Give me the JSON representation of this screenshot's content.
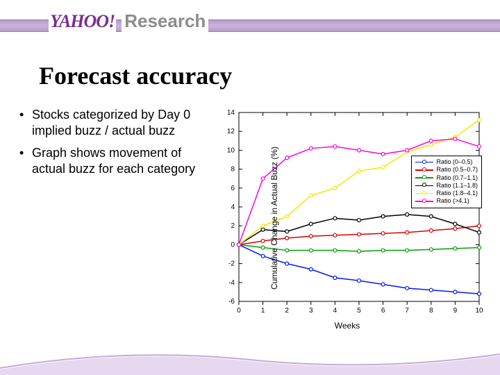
{
  "header": {
    "logo_text": "YAHOO!",
    "research_label": "Research"
  },
  "slide": {
    "title": "Forecast accuracy",
    "bullets": [
      "Stocks categorized by Day 0 implied buzz / actual buzz",
      "Graph shows movement of actual buzz for each category"
    ]
  },
  "chart": {
    "type": "line",
    "xlabel": "Weeks",
    "ylabel": "Cumulative Change in Actual Buzz (%)",
    "xlim": [
      0,
      10
    ],
    "ylim": [
      -6,
      14
    ],
    "xtick_step": 1,
    "ytick_step": 2,
    "label_fontsize": 12,
    "tick_fontsize": 10,
    "background_color": "#ffffff",
    "axis_color": "#000000",
    "grid": false,
    "line_width": 1.5,
    "marker": "circle",
    "marker_size": 5,
    "marker_fill": "#ffffff",
    "series": [
      {
        "name": "Ratio (0–0.5)",
        "color": "#0018f0",
        "x": [
          0,
          1,
          2,
          3,
          4,
          5,
          6,
          7,
          8,
          9,
          10
        ],
        "y": [
          0,
          -1.2,
          -2.0,
          -2.6,
          -3.5,
          -3.8,
          -4.2,
          -4.6,
          -4.8,
          -5.0,
          -5.2
        ]
      },
      {
        "name": "Ratio (0.5–0.7)",
        "color": "#d60000",
        "x": [
          0,
          1,
          2,
          3,
          4,
          5,
          6,
          7,
          8,
          9,
          10
        ],
        "y": [
          0,
          0.4,
          0.7,
          0.9,
          1.0,
          1.1,
          1.2,
          1.3,
          1.5,
          1.7,
          2.0
        ]
      },
      {
        "name": "Ratio (0.7–1.1)",
        "color": "#00a000",
        "x": [
          0,
          1,
          2,
          3,
          4,
          5,
          6,
          7,
          8,
          9,
          10
        ],
        "y": [
          0,
          -0.3,
          -0.6,
          -0.6,
          -0.6,
          -0.7,
          -0.6,
          -0.6,
          -0.5,
          -0.4,
          -0.3
        ]
      },
      {
        "name": "Ratio (1.1–1.8)",
        "color": "#000000",
        "x": [
          0,
          1,
          2,
          3,
          4,
          5,
          6,
          7,
          8,
          9,
          10
        ],
        "y": [
          0,
          1.6,
          1.4,
          2.2,
          2.8,
          2.6,
          3.0,
          3.2,
          3.0,
          2.2,
          1.3
        ]
      },
      {
        "name": "Ratio (1.8–4.1)",
        "color": "#f5e600",
        "x": [
          0,
          1,
          2,
          3,
          4,
          5,
          6,
          7,
          8,
          9,
          10
        ],
        "y": [
          0,
          2.0,
          3.0,
          5.2,
          6.0,
          7.8,
          8.2,
          9.8,
          10.6,
          11.4,
          13.2
        ]
      },
      {
        "name": "Ratio (>4.1)",
        "color": "#ff00de",
        "x": [
          0,
          1,
          2,
          3,
          4,
          5,
          6,
          7,
          8,
          9,
          10
        ],
        "y": [
          0,
          7.0,
          9.2,
          10.2,
          10.4,
          10.0,
          9.6,
          10.0,
          11.0,
          11.2,
          10.4
        ]
      }
    ],
    "legend": {
      "position": "right",
      "border_color": "#000000",
      "fontsize": 9
    }
  },
  "theme": {
    "band_color": "#b89ac9",
    "brand_purple": "#7b2d90",
    "footer_curve_color": "#c4a8d5"
  }
}
